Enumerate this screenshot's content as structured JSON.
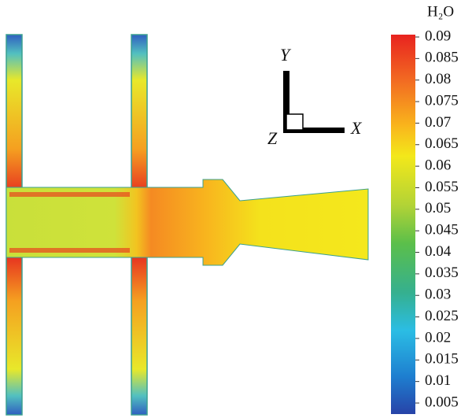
{
  "colorbar": {
    "title": "H₂O",
    "lim": [
      0.005,
      0.09
    ],
    "ticks": [
      0.09,
      0.085,
      0.08,
      0.075,
      0.07,
      0.065,
      0.06,
      0.055,
      0.05,
      0.045,
      0.04,
      0.035,
      0.03,
      0.025,
      0.02,
      0.015,
      0.01,
      0.005
    ]
  },
  "axes": {
    "x": "X",
    "y": "Y",
    "z": "Z"
  }
}
